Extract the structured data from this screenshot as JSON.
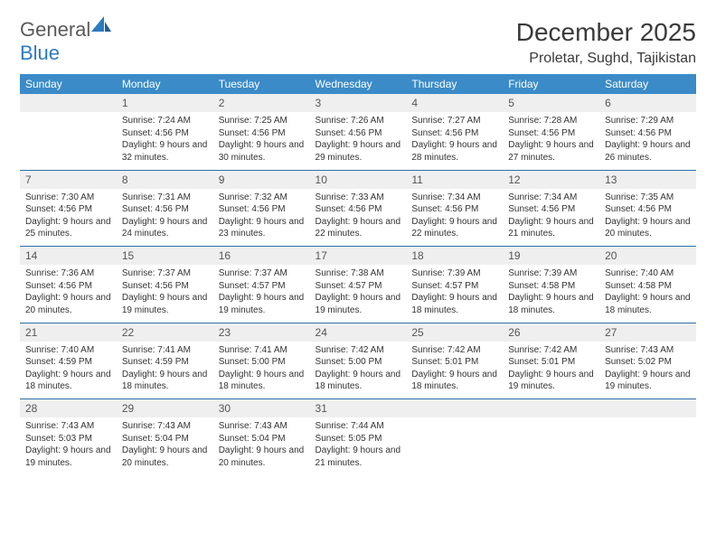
{
  "brand": {
    "part1": "General",
    "part2": "Blue"
  },
  "title": "December 2025",
  "location": "Proletar, Sughd, Tajikistan",
  "colors": {
    "header_bg": "#3b8bc8",
    "header_text": "#ffffff",
    "daynum_bg": "#efefef",
    "week_border": "#2e6fa8",
    "text": "#333333",
    "brand_gray": "#5a5a5a",
    "brand_blue": "#2b7bbf"
  },
  "weekdays": [
    "Sunday",
    "Monday",
    "Tuesday",
    "Wednesday",
    "Thursday",
    "Friday",
    "Saturday"
  ],
  "weeks": [
    [
      null,
      {
        "n": "1",
        "sr": "7:24 AM",
        "ss": "4:56 PM",
        "dl": "9 hours and 32 minutes."
      },
      {
        "n": "2",
        "sr": "7:25 AM",
        "ss": "4:56 PM",
        "dl": "9 hours and 30 minutes."
      },
      {
        "n": "3",
        "sr": "7:26 AM",
        "ss": "4:56 PM",
        "dl": "9 hours and 29 minutes."
      },
      {
        "n": "4",
        "sr": "7:27 AM",
        "ss": "4:56 PM",
        "dl": "9 hours and 28 minutes."
      },
      {
        "n": "5",
        "sr": "7:28 AM",
        "ss": "4:56 PM",
        "dl": "9 hours and 27 minutes."
      },
      {
        "n": "6",
        "sr": "7:29 AM",
        "ss": "4:56 PM",
        "dl": "9 hours and 26 minutes."
      }
    ],
    [
      {
        "n": "7",
        "sr": "7:30 AM",
        "ss": "4:56 PM",
        "dl": "9 hours and 25 minutes."
      },
      {
        "n": "8",
        "sr": "7:31 AM",
        "ss": "4:56 PM",
        "dl": "9 hours and 24 minutes."
      },
      {
        "n": "9",
        "sr": "7:32 AM",
        "ss": "4:56 PM",
        "dl": "9 hours and 23 minutes."
      },
      {
        "n": "10",
        "sr": "7:33 AM",
        "ss": "4:56 PM",
        "dl": "9 hours and 22 minutes."
      },
      {
        "n": "11",
        "sr": "7:34 AM",
        "ss": "4:56 PM",
        "dl": "9 hours and 22 minutes."
      },
      {
        "n": "12",
        "sr": "7:34 AM",
        "ss": "4:56 PM",
        "dl": "9 hours and 21 minutes."
      },
      {
        "n": "13",
        "sr": "7:35 AM",
        "ss": "4:56 PM",
        "dl": "9 hours and 20 minutes."
      }
    ],
    [
      {
        "n": "14",
        "sr": "7:36 AM",
        "ss": "4:56 PM",
        "dl": "9 hours and 20 minutes."
      },
      {
        "n": "15",
        "sr": "7:37 AM",
        "ss": "4:56 PM",
        "dl": "9 hours and 19 minutes."
      },
      {
        "n": "16",
        "sr": "7:37 AM",
        "ss": "4:57 PM",
        "dl": "9 hours and 19 minutes."
      },
      {
        "n": "17",
        "sr": "7:38 AM",
        "ss": "4:57 PM",
        "dl": "9 hours and 19 minutes."
      },
      {
        "n": "18",
        "sr": "7:39 AM",
        "ss": "4:57 PM",
        "dl": "9 hours and 18 minutes."
      },
      {
        "n": "19",
        "sr": "7:39 AM",
        "ss": "4:58 PM",
        "dl": "9 hours and 18 minutes."
      },
      {
        "n": "20",
        "sr": "7:40 AM",
        "ss": "4:58 PM",
        "dl": "9 hours and 18 minutes."
      }
    ],
    [
      {
        "n": "21",
        "sr": "7:40 AM",
        "ss": "4:59 PM",
        "dl": "9 hours and 18 minutes."
      },
      {
        "n": "22",
        "sr": "7:41 AM",
        "ss": "4:59 PM",
        "dl": "9 hours and 18 minutes."
      },
      {
        "n": "23",
        "sr": "7:41 AM",
        "ss": "5:00 PM",
        "dl": "9 hours and 18 minutes."
      },
      {
        "n": "24",
        "sr": "7:42 AM",
        "ss": "5:00 PM",
        "dl": "9 hours and 18 minutes."
      },
      {
        "n": "25",
        "sr": "7:42 AM",
        "ss": "5:01 PM",
        "dl": "9 hours and 18 minutes."
      },
      {
        "n": "26",
        "sr": "7:42 AM",
        "ss": "5:01 PM",
        "dl": "9 hours and 19 minutes."
      },
      {
        "n": "27",
        "sr": "7:43 AM",
        "ss": "5:02 PM",
        "dl": "9 hours and 19 minutes."
      }
    ],
    [
      {
        "n": "28",
        "sr": "7:43 AM",
        "ss": "5:03 PM",
        "dl": "9 hours and 19 minutes."
      },
      {
        "n": "29",
        "sr": "7:43 AM",
        "ss": "5:04 PM",
        "dl": "9 hours and 20 minutes."
      },
      {
        "n": "30",
        "sr": "7:43 AM",
        "ss": "5:04 PM",
        "dl": "9 hours and 20 minutes."
      },
      {
        "n": "31",
        "sr": "7:44 AM",
        "ss": "5:05 PM",
        "dl": "9 hours and 21 minutes."
      },
      null,
      null,
      null
    ]
  ],
  "labels": {
    "sunrise": "Sunrise:",
    "sunset": "Sunset:",
    "daylight": "Daylight:"
  }
}
